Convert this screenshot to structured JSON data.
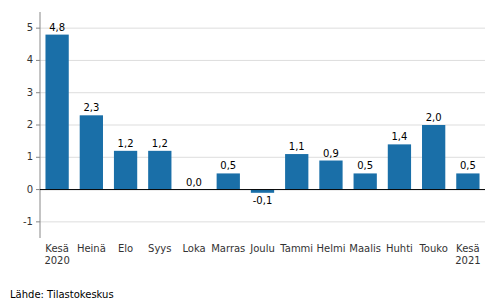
{
  "chart_data": {
    "type": "bar",
    "categories": [
      "Kesä\n2020",
      "Heinä",
      "Elo",
      "Syys",
      "Loka",
      "Marras",
      "Joulu",
      "Tammi",
      "Helmi",
      "Maalis",
      "Huhti",
      "Touko",
      "Kesä\n2021"
    ],
    "values": [
      4.8,
      2.3,
      1.2,
      1.2,
      0.0,
      0.5,
      -0.1,
      1.1,
      0.9,
      0.5,
      1.4,
      2.0,
      0.5
    ],
    "value_labels": [
      "4,8",
      "2,3",
      "1,2",
      "1,2",
      "0,0",
      "0,5",
      "-0,1",
      "1,1",
      "0,9",
      "0,5",
      "1,4",
      "2,0",
      "0,5"
    ],
    "color": "#1a6fa8",
    "ylim": [
      -1.5,
      5.5
    ],
    "yticks": [
      -1,
      0,
      1,
      2,
      3,
      4,
      5
    ],
    "grid": true,
    "data_labels": true,
    "annotations": [
      "Lähde: Tilastokeskus"
    ]
  }
}
